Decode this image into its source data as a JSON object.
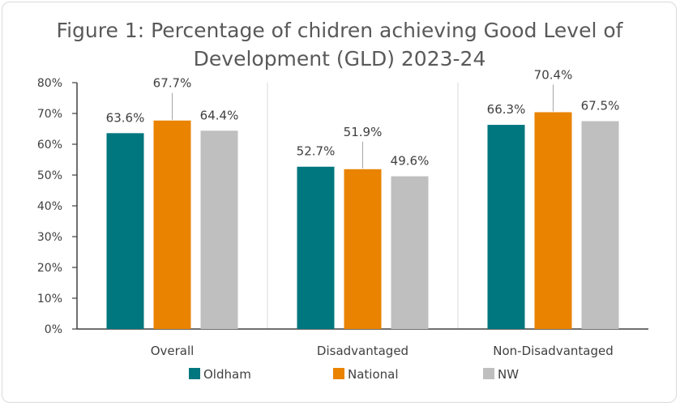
{
  "chart_data": {
    "type": "bar",
    "title_line1": "Figure 1: Percentage of chidren achieving Good Level of",
    "title_line2": "Development (GLD) 2023-24",
    "categories": [
      "Overall",
      "Disadvantaged",
      "Non-Disadvantaged"
    ],
    "series": [
      {
        "name": "Oldham",
        "color": "#00767e",
        "values": [
          63.6,
          52.7,
          66.3
        ],
        "labels": [
          "63.6%",
          "52.7%",
          "66.3%"
        ]
      },
      {
        "name": "National",
        "color": "#e98300",
        "values": [
          67.7,
          51.9,
          70.4
        ],
        "labels": [
          "67.7%",
          "51.9%",
          "70.4%"
        ]
      },
      {
        "name": "NW",
        "color": "#bfbfbf",
        "values": [
          64.4,
          49.6,
          67.5
        ],
        "labels": [
          "64.4%",
          "49.6%",
          "67.5%"
        ]
      }
    ],
    "yticks": [
      "0%",
      "10%",
      "20%",
      "30%",
      "40%",
      "50%",
      "60%",
      "70%",
      "80%"
    ],
    "ylim": [
      0,
      80
    ],
    "legend_position": "bottom",
    "grid": false
  }
}
